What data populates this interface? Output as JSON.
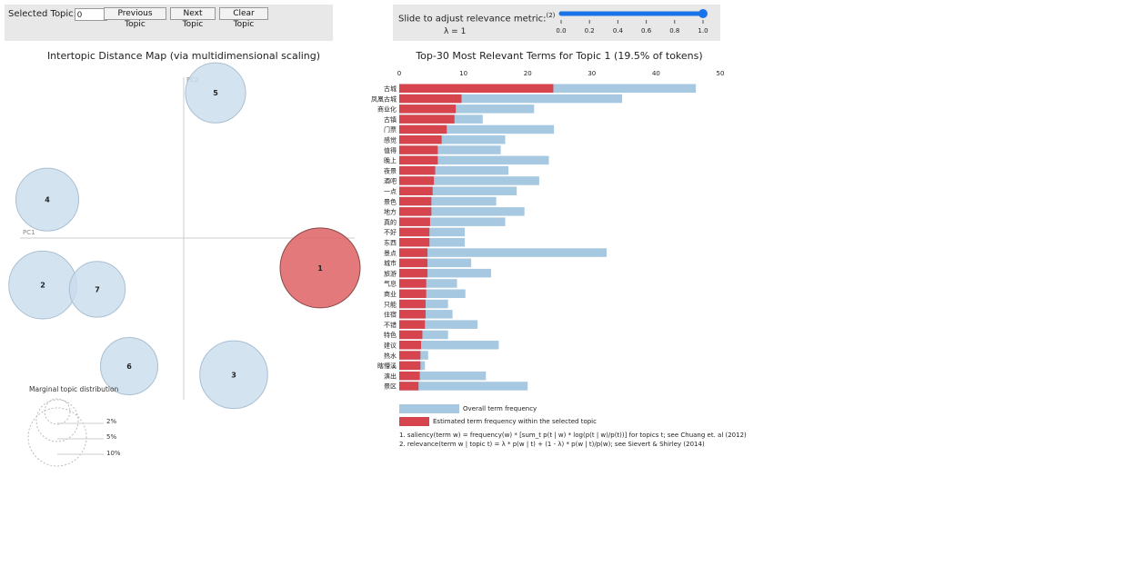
{
  "controls": {
    "selected_topic_label": "Selected Topic:",
    "selected_topic_value": "0",
    "prev_label": "Previous Topic",
    "next_label": "Next Topic",
    "clear_label": "Clear Topic",
    "slider_label": "Slide to adjust relevance metric:",
    "slider_note": "(2)",
    "lambda_text": "λ = 1",
    "lambda_value": 1.0,
    "slider_ticks": [
      "0.0",
      "0.2",
      "0.4",
      "0.6",
      "0.8",
      "1.0"
    ]
  },
  "map": {
    "title": "Intertopic Distance Map (via multidimensional scaling)",
    "pc1_label": "PC1",
    "pc2_label": "PC2",
    "marginal_title": "Marginal topic distribution",
    "marginal_ticks": [
      "2%",
      "5%",
      "10%"
    ]
  },
  "chart_data": [
    {
      "type": "scatter",
      "title": "Intertopic Distance Map (via multidimensional scaling)",
      "xlabel": "PC1",
      "ylabel": "PC2",
      "topics": [
        {
          "id": "1",
          "x": 0.3,
          "y": -0.07,
          "size_pct": 19.5,
          "selected": true
        },
        {
          "id": "2",
          "x": -0.31,
          "y": -0.11,
          "size_pct": 14.0,
          "selected": false
        },
        {
          "id": "3",
          "x": 0.11,
          "y": -0.32,
          "size_pct": 14.0,
          "selected": false
        },
        {
          "id": "4",
          "x": -0.3,
          "y": 0.09,
          "size_pct": 12.0,
          "selected": false
        },
        {
          "id": "5",
          "x": 0.07,
          "y": 0.34,
          "size_pct": 11.0,
          "selected": false
        },
        {
          "id": "6",
          "x": -0.12,
          "y": -0.3,
          "size_pct": 10.0,
          "selected": false
        },
        {
          "id": "7",
          "x": -0.19,
          "y": -0.12,
          "size_pct": 9.5,
          "selected": false
        }
      ]
    },
    {
      "type": "bar",
      "title": "Top-30 Most Relevant Terms for Topic 1 (19.5% of tokens)",
      "xlim": [
        0,
        50
      ],
      "x_ticks": [
        "0",
        "10",
        "20",
        "30",
        "40",
        "50"
      ],
      "categories": [
        "古城",
        "凤凰古城",
        "商业化",
        "古镇",
        "门票",
        "感觉",
        "值得",
        "晚上",
        "夜景",
        "酒吧",
        "一点",
        "景色",
        "地方",
        "真的",
        "不好",
        "东西",
        "景点",
        "城市",
        "旅游",
        "气息",
        "商业",
        "只能",
        "住宿",
        "不错",
        "特色",
        "建议",
        "热水",
        "瞎懵溪",
        "演出",
        "景区"
      ],
      "series": [
        {
          "name": "Overall term frequency",
          "values": [
            46.2,
            34.7,
            21.0,
            13.0,
            24.1,
            16.5,
            15.8,
            23.3,
            17.0,
            21.8,
            18.3,
            15.1,
            19.5,
            16.5,
            10.2,
            10.2,
            32.3,
            11.2,
            14.3,
            9.0,
            10.3,
            7.6,
            8.3,
            12.2,
            7.6,
            15.5,
            4.5,
            4.0,
            13.5,
            20.0
          ]
        },
        {
          "name": "Estimated term frequency within the selected topic",
          "values": [
            24.0,
            9.7,
            8.8,
            8.6,
            7.4,
            6.6,
            6.0,
            6.0,
            5.6,
            5.4,
            5.2,
            5.0,
            5.0,
            4.8,
            4.7,
            4.7,
            4.4,
            4.4,
            4.4,
            4.2,
            4.2,
            4.1,
            4.1,
            4.0,
            3.6,
            3.4,
            3.3,
            3.3,
            3.2,
            3.0
          ]
        }
      ]
    }
  ],
  "footnotes": [
    "1. saliency(term w) = frequency(w) * [sum_t p(t | w) * log(p(t | w)/p(t))] for topics t; see Chuang et. al (2012)",
    "2. relevance(term w | topic t) = λ * p(w | t) + (1 - λ) * p(w | t)/p(w); see Sievert & Shirley (2014)"
  ],
  "colors": {
    "overall": "#a6c8e0",
    "estimated": "#d6444e",
    "bubble": "#c9dcec",
    "bubble_selected": "#e06a6c",
    "slider": "#1a73e8"
  }
}
